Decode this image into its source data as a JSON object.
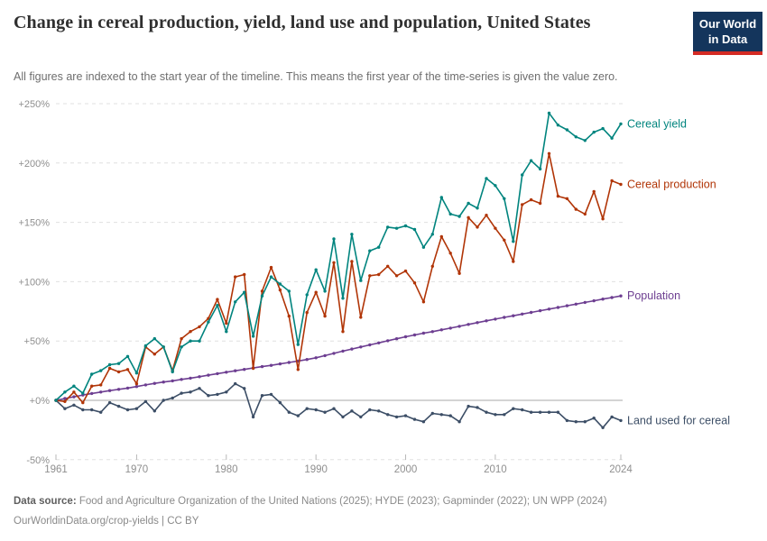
{
  "header": {
    "title": "Change in cereal production, yield, land use and population, United States",
    "subtitle": "All figures are indexed to the start year of the timeline. This means the first year of the time-series is given the value zero.",
    "logo": {
      "line1": "Our World",
      "line2": "in Data",
      "bg_color": "#14355c",
      "bar_color": "#d42b24"
    }
  },
  "footer": {
    "source_label": "Data source:",
    "source_text": " Food and Agriculture Organization of the United Nations (2025); HYDE (2023); Gapminder (2022); UN WPP (2024)",
    "note_text": "OurWorldinData.org/crop-yields | CC BY"
  },
  "chart_data": {
    "type": "line",
    "title": "Change in cereal production, yield, land use and population, United States",
    "xlabel": "",
    "ylabel": "",
    "unit": "% change since 1961",
    "xlim": [
      1961,
      2024
    ],
    "ylim": [
      -50,
      250
    ],
    "grid": "horizontal-dashed",
    "legend_position": "right-of-line-ends",
    "x": [
      1961,
      1962,
      1963,
      1964,
      1965,
      1966,
      1967,
      1968,
      1969,
      1970,
      1971,
      1972,
      1973,
      1974,
      1975,
      1976,
      1977,
      1978,
      1979,
      1980,
      1981,
      1982,
      1983,
      1984,
      1985,
      1986,
      1987,
      1988,
      1989,
      1990,
      1991,
      1992,
      1993,
      1994,
      1995,
      1996,
      1997,
      1998,
      1999,
      2000,
      2001,
      2002,
      2003,
      2004,
      2005,
      2006,
      2007,
      2008,
      2009,
      2010,
      2011,
      2012,
      2013,
      2014,
      2015,
      2016,
      2017,
      2018,
      2019,
      2020,
      2021,
      2022,
      2023,
      2024
    ],
    "series": [
      {
        "name": "Cereal yield",
        "color": "#00847E",
        "values": [
          0,
          7,
          12,
          6,
          22,
          25,
          30,
          31,
          37,
          23,
          46,
          52,
          45,
          24,
          45,
          50,
          50,
          66,
          80,
          58,
          83,
          91,
          54,
          88,
          104,
          98,
          92,
          47,
          89,
          110,
          92,
          136,
          86,
          140,
          101,
          126,
          129,
          146,
          145,
          147,
          144,
          129,
          140,
          171,
          157,
          155,
          166,
          162,
          187,
          181,
          170,
          134,
          190,
          202,
          195,
          242,
          232,
          228,
          222,
          219,
          226,
          229,
          221,
          233
        ]
      },
      {
        "name": "Cereal production",
        "color": "#B13507",
        "values": [
          0,
          -1,
          7,
          -2,
          12,
          13,
          27,
          24,
          26,
          14,
          45,
          39,
          45,
          25,
          52,
          58,
          62,
          69,
          85,
          65,
          104,
          106,
          27,
          92,
          112,
          93,
          71,
          26,
          74,
          91,
          71,
          116,
          58,
          117,
          70,
          105,
          106,
          113,
          105,
          109,
          99,
          83,
          113,
          138,
          124,
          107,
          154,
          146,
          156,
          145,
          135,
          117,
          165,
          169,
          166,
          208,
          172,
          170,
          161,
          157,
          176,
          153,
          185,
          182
        ]
      },
      {
        "name": "Population",
        "color": "#6D3E91",
        "values": [
          0,
          1.5,
          3,
          4.5,
          5.8,
          7,
          8.2,
          9.3,
          10.3,
          11.6,
          13,
          14.3,
          15.4,
          16.4,
          17.6,
          18.7,
          19.9,
          21.2,
          22.5,
          23.7,
          24.9,
          26.1,
          27.3,
          28.4,
          29.5,
          30.7,
          31.9,
          33.1,
          34.4,
          35.9,
          37.7,
          39.6,
          41.5,
          43.2,
          45,
          46.7,
          48.4,
          50.2,
          51.9,
          53.6,
          55.1,
          56.6,
          57.9,
          59.4,
          60.9,
          62.4,
          64,
          65.5,
          67,
          68.5,
          69.9,
          71.3,
          72.7,
          74.1,
          75.5,
          76.9,
          78.3,
          79.7,
          81.1,
          82.5,
          83.9,
          85.3,
          86.6,
          88
        ]
      },
      {
        "name": "Land used for cereal",
        "color": "#3C4E66",
        "values": [
          0,
          -7,
          -4,
          -8,
          -8,
          -10,
          -2,
          -5,
          -8,
          -7,
          -1,
          -9,
          0,
          2,
          6,
          7,
          10,
          4,
          5,
          7,
          14,
          10,
          -14,
          4,
          5,
          -2,
          -10,
          -13,
          -7,
          -8,
          -10,
          -7,
          -14,
          -9,
          -14,
          -8,
          -9,
          -12,
          -14,
          -13,
          -16,
          -18,
          -11,
          -12,
          -13,
          -18,
          -5,
          -6,
          -10,
          -12,
          -12,
          -7,
          -8,
          -10,
          -10,
          -10,
          -10,
          -17,
          -18,
          -18,
          -15,
          -23,
          -14,
          -17
        ]
      }
    ],
    "yticks": [
      {
        "value": 250,
        "label": "+250%"
      },
      {
        "value": 200,
        "label": "+200%"
      },
      {
        "value": 150,
        "label": "+150%"
      },
      {
        "value": 100,
        "label": "+100%"
      },
      {
        "value": 50,
        "label": "+50%"
      },
      {
        "value": 0,
        "label": "+0%"
      },
      {
        "value": -50,
        "label": "-50%"
      }
    ],
    "xticks": [
      {
        "value": 1961,
        "label": "1961"
      },
      {
        "value": 1970,
        "label": "1970"
      },
      {
        "value": 1980,
        "label": "1980"
      },
      {
        "value": 1990,
        "label": "1990"
      },
      {
        "value": 2000,
        "label": "2000"
      },
      {
        "value": 2010,
        "label": "2010"
      },
      {
        "value": 2024,
        "label": "2024"
      }
    ],
    "colors": {
      "grid_line": "#e0e0e0",
      "zero_line": "#a8a8a8",
      "axis_text": "#8f8f8f",
      "tick_mark": "#b8b8b8"
    }
  }
}
